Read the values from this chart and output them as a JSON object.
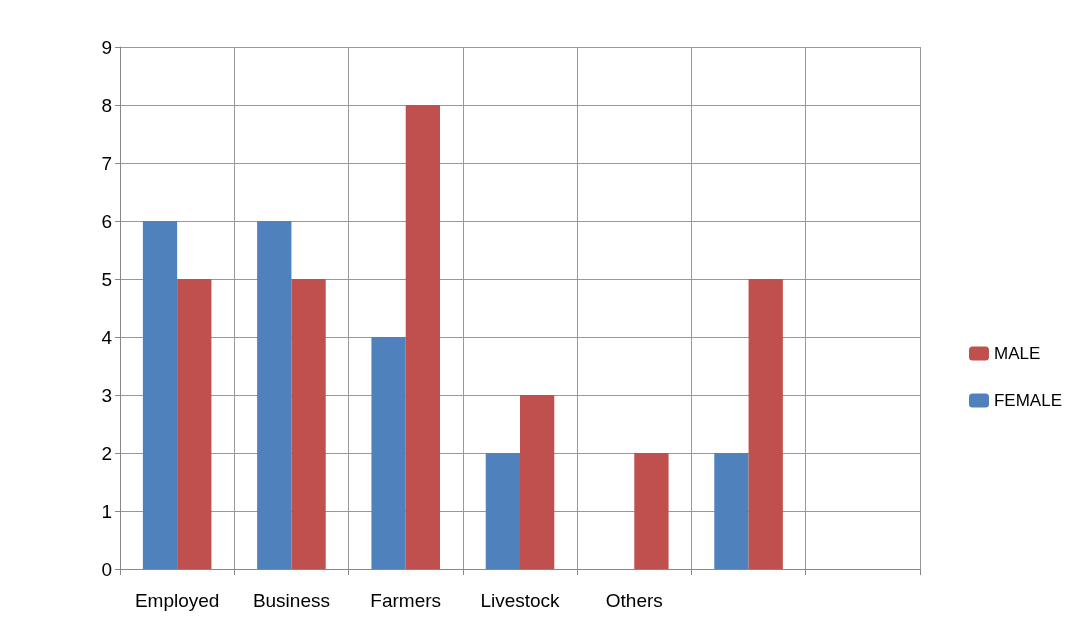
{
  "chart_data": {
    "type": "bar",
    "categories": [
      "Employed",
      "Business",
      "Farmers",
      "Livestock",
      "Others",
      null,
      null
    ],
    "series": [
      {
        "name": "FEMALE",
        "color": "#4f81bd",
        "values": [
          6,
          6,
          4,
          2,
          0,
          2,
          null
        ]
      },
      {
        "name": "MALE",
        "color": "#c0504d",
        "values": [
          5,
          5,
          8,
          3,
          2,
          5,
          null
        ]
      }
    ],
    "ylim": [
      0,
      9
    ],
    "yticks": [
      0,
      1,
      2,
      3,
      4,
      5,
      6,
      7,
      8,
      9
    ],
    "grid": true,
    "legend": "right"
  }
}
